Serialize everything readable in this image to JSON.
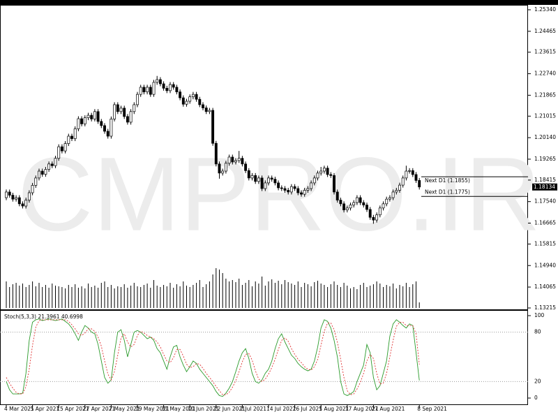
{
  "chart_data": {
    "type": "candlestick",
    "watermark": "CMPRO.IR",
    "up_color": "#ffffff",
    "down_color": "#000000",
    "volume_color": "#000000",
    "ylim": [
      1.13215,
      1.2534
    ],
    "yticks": [
      {
        "value": 1.2534,
        "label": "1.25340"
      },
      1.24465,
      1.23615,
      {
        "value": 1.2274,
        "label": "1.22740"
      },
      1.21865,
      1.21015,
      {
        "value": 1.2014,
        "label": "1.20140"
      },
      1.19265,
      1.18415,
      {
        "value": 1.1754,
        "label": "1.17540"
      },
      1.16665,
      1.15815,
      {
        "value": 1.1494,
        "label": "1.14940"
      },
      1.14065,
      1.13215
    ],
    "categories": [
      "4 Mar 2021",
      null,
      null,
      null,
      null,
      null,
      null,
      null,
      "5 Apr 2021",
      null,
      null,
      null,
      null,
      null,
      null,
      null,
      "15 Apr 2021",
      null,
      null,
      null,
      null,
      null,
      null,
      null,
      "27 Apr 2021",
      null,
      null,
      null,
      null,
      null,
      null,
      null,
      "7 May 2021",
      null,
      null,
      null,
      null,
      null,
      null,
      null,
      "19 May 2021",
      null,
      null,
      null,
      null,
      null,
      null,
      null,
      "31 May 2021",
      null,
      null,
      null,
      null,
      null,
      null,
      null,
      "10 Jun 2021",
      null,
      null,
      null,
      null,
      null,
      null,
      null,
      "22 Jun 2021",
      null,
      null,
      null,
      null,
      null,
      null,
      null,
      "2 Jul 2021",
      null,
      null,
      null,
      null,
      null,
      null,
      null,
      "14 Jul 2021",
      null,
      null,
      null,
      null,
      null,
      null,
      null,
      "26 Jul 2021",
      null,
      null,
      null,
      null,
      null,
      null,
      null,
      "5 Aug 2021",
      null,
      null,
      null,
      null,
      null,
      null,
      null,
      "17 Aug 2021",
      null,
      null,
      null,
      null,
      null,
      null,
      null,
      "27 Aug 2021",
      null,
      null,
      null,
      null,
      null,
      null,
      null,
      null,
      null,
      null,
      null,
      null,
      null,
      "8 Sep 2021"
    ],
    "open": [
      1.177,
      1.1793,
      1.178,
      1.1764,
      1.177,
      1.1745,
      1.1736,
      1.176,
      1.179,
      1.182,
      1.185,
      1.1878,
      1.1865,
      1.1885,
      1.1907,
      1.19,
      1.193,
      1.1977,
      1.196,
      1.199,
      1.202,
      1.201,
      1.205,
      1.2091,
      1.207,
      1.2095,
      1.2105,
      1.209,
      1.212,
      1.208,
      1.2063,
      1.204,
      1.202,
      1.209,
      1.2148,
      1.212,
      1.2134,
      1.21,
      1.2077,
      1.212,
      1.2148,
      1.219,
      1.2219,
      1.22,
      1.2219,
      1.219,
      1.2239,
      1.225,
      1.2233,
      1.2215,
      1.2205,
      1.223,
      1.2219,
      1.22,
      1.2176,
      1.215,
      1.2162,
      1.218,
      1.219,
      1.217,
      1.2148,
      1.2135,
      1.212,
      1.2125,
      1.1991,
      1.1907,
      1.187,
      1.1878,
      1.191,
      1.1935,
      1.1915,
      1.1921,
      1.193,
      1.1907,
      1.188,
      1.185,
      1.186,
      1.1836,
      1.185,
      1.1807,
      1.183,
      1.185,
      1.1845,
      1.183,
      1.181,
      1.1807,
      1.18,
      1.1793,
      1.1815,
      1.1807,
      1.179,
      1.1784,
      1.18,
      1.1807,
      1.183,
      1.185,
      1.187,
      1.1878,
      1.189,
      1.1864,
      1.186,
      1.1793,
      1.176,
      1.1745,
      1.172,
      1.1728,
      1.174,
      1.175,
      1.177,
      1.175,
      1.174,
      1.1722,
      1.169,
      1.1679,
      1.17,
      1.1728,
      1.1745,
      1.1764,
      1.177,
      1.1793,
      1.18,
      1.1821,
      1.185,
      1.1878,
      1.188,
      1.1864,
      1.184
    ],
    "high": [
      1.1803,
      1.1803,
      1.179,
      1.178,
      1.178,
      1.1755,
      1.177,
      1.18,
      1.183,
      1.186,
      1.1888,
      1.1888,
      1.1895,
      1.1917,
      1.1917,
      1.194,
      1.1987,
      1.1987,
      1.2,
      1.203,
      1.203,
      1.206,
      1.2101,
      1.2101,
      1.2105,
      1.2115,
      1.2115,
      1.213,
      1.213,
      1.209,
      1.2073,
      1.205,
      1.21,
      1.2158,
      1.2158,
      1.2144,
      1.2144,
      1.211,
      1.213,
      1.2158,
      1.22,
      1.2229,
      1.2229,
      1.2229,
      1.2229,
      1.2249,
      1.2265,
      1.226,
      1.2243,
      1.2225,
      1.224,
      1.224,
      1.2229,
      1.221,
      1.2186,
      1.2172,
      1.219,
      1.22,
      1.22,
      1.218,
      1.2158,
      1.2145,
      1.2135,
      1.2135,
      1.2001,
      1.1917,
      1.1888,
      1.192,
      1.1945,
      1.1945,
      1.1931,
      1.196,
      1.194,
      1.1917,
      1.189,
      1.187,
      1.187,
      1.186,
      1.186,
      1.184,
      1.186,
      1.186,
      1.1855,
      1.184,
      1.182,
      1.1817,
      1.181,
      1.1825,
      1.1825,
      1.1817,
      1.18,
      1.181,
      1.1817,
      1.184,
      1.186,
      1.188,
      1.1895,
      1.19,
      1.19,
      1.1874,
      1.187,
      1.1803,
      1.177,
      1.1755,
      1.1738,
      1.175,
      1.176,
      1.178,
      1.178,
      1.176,
      1.175,
      1.1732,
      1.17,
      1.171,
      1.1738,
      1.1755,
      1.1774,
      1.178,
      1.1803,
      1.181,
      1.1831,
      1.186,
      1.19,
      1.189,
      1.189,
      1.1874,
      1.185
    ],
    "low": [
      1.176,
      1.177,
      1.1754,
      1.1754,
      1.1735,
      1.1726,
      1.1726,
      1.175,
      1.178,
      1.181,
      1.184,
      1.1855,
      1.1855,
      1.1875,
      1.189,
      1.189,
      1.192,
      1.195,
      1.195,
      1.198,
      1.2,
      1.2,
      1.204,
      1.206,
      1.206,
      1.2085,
      1.208,
      1.208,
      1.207,
      1.2053,
      1.203,
      1.201,
      1.201,
      1.208,
      1.211,
      1.211,
      1.209,
      1.2067,
      1.2067,
      1.211,
      1.2138,
      1.218,
      1.219,
      1.219,
      1.218,
      1.218,
      1.2229,
      1.2223,
      1.2205,
      1.2195,
      1.2195,
      1.2209,
      1.219,
      1.2166,
      1.214,
      1.214,
      1.2152,
      1.217,
      1.216,
      1.2138,
      1.2125,
      1.211,
      1.211,
      1.1981,
      1.1897,
      1.1847,
      1.186,
      1.1868,
      1.19,
      1.1905,
      1.1905,
      1.1911,
      1.1897,
      1.187,
      1.184,
      1.184,
      1.1826,
      1.1826,
      1.1797,
      1.1797,
      1.182,
      1.1835,
      1.182,
      1.18,
      1.1797,
      1.179,
      1.1783,
      1.1783,
      1.1797,
      1.178,
      1.1774,
      1.1774,
      1.179,
      1.1797,
      1.182,
      1.184,
      1.186,
      1.1868,
      1.1854,
      1.185,
      1.1783,
      1.175,
      1.1735,
      1.171,
      1.171,
      1.1718,
      1.173,
      1.174,
      1.174,
      1.173,
      1.1712,
      1.168,
      1.1664,
      1.1669,
      1.169,
      1.1718,
      1.1735,
      1.1754,
      1.176,
      1.1783,
      1.179,
      1.1811,
      1.184,
      1.1868,
      1.1854,
      1.183,
      1.1803
    ],
    "close": [
      1.1793,
      1.178,
      1.1764,
      1.177,
      1.1745,
      1.1736,
      1.176,
      1.179,
      1.182,
      1.185,
      1.1878,
      1.1865,
      1.1885,
      1.1907,
      1.19,
      1.193,
      1.1977,
      1.196,
      1.199,
      1.202,
      1.201,
      1.205,
      1.2091,
      1.207,
      1.2095,
      1.2105,
      1.209,
      1.212,
      1.208,
      1.2063,
      1.204,
      1.202,
      1.209,
      1.2148,
      1.212,
      1.2134,
      1.21,
      1.2077,
      1.212,
      1.2148,
      1.219,
      1.2219,
      1.22,
      1.2219,
      1.219,
      1.2239,
      1.225,
      1.2233,
      1.2215,
      1.2205,
      1.223,
      1.2219,
      1.22,
      1.2176,
      1.215,
      1.2162,
      1.218,
      1.219,
      1.217,
      1.2148,
      1.2135,
      1.212,
      1.2125,
      1.1991,
      1.1907,
      1.187,
      1.1878,
      1.191,
      1.1935,
      1.1915,
      1.1921,
      1.193,
      1.1907,
      1.188,
      1.185,
      1.186,
      1.1836,
      1.185,
      1.1807,
      1.183,
      1.185,
      1.1845,
      1.183,
      1.181,
      1.1807,
      1.18,
      1.1793,
      1.1815,
      1.1807,
      1.179,
      1.1784,
      1.18,
      1.1807,
      1.183,
      1.185,
      1.187,
      1.1878,
      1.189,
      1.1864,
      1.186,
      1.1793,
      1.176,
      1.1745,
      1.172,
      1.1728,
      1.174,
      1.175,
      1.177,
      1.175,
      1.174,
      1.1722,
      1.169,
      1.1679,
      1.17,
      1.1728,
      1.1745,
      1.1764,
      1.177,
      1.1793,
      1.18,
      1.1821,
      1.185,
      1.1878,
      1.188,
      1.1864,
      1.184,
      1.18134
    ],
    "volume": [
      38,
      30,
      34,
      36,
      32,
      35,
      30,
      33,
      38,
      31,
      36,
      30,
      33,
      29,
      35,
      32,
      31,
      30,
      28,
      33,
      30,
      34,
      29,
      31,
      28,
      35,
      30,
      32,
      29,
      36,
      38,
      30,
      33,
      28,
      31,
      30,
      34,
      29,
      32,
      36,
      31,
      30,
      33,
      35,
      29,
      40,
      32,
      30,
      33,
      31,
      36,
      29,
      34,
      31,
      38,
      32,
      30,
      33,
      36,
      40,
      30,
      34,
      38,
      48,
      57,
      55,
      50,
      42,
      38,
      40,
      37,
      42,
      33,
      36,
      40,
      31,
      38,
      35,
      45,
      32,
      38,
      41,
      36,
      39,
      34,
      40,
      37,
      35,
      33,
      38,
      30,
      36,
      34,
      31,
      37,
      39,
      35,
      33,
      30,
      34,
      38,
      33,
      30,
      36,
      32,
      28,
      30,
      27,
      33,
      36,
      30,
      32,
      34,
      38,
      35,
      30,
      33,
      31,
      35,
      28,
      33,
      31,
      36,
      30,
      34,
      38,
      8
    ],
    "levels": [
      {
        "label": "Next D1 (1.1855)",
        "value": 1.1855
      },
      {
        "label": "Next D1 (1.1775)",
        "value": 1.1775
      }
    ],
    "indicator": {
      "type": "line",
      "title": "Stoch(5,3,3)",
      "ylim": [
        0,
        100
      ],
      "yticks": [
        0,
        20,
        80,
        100
      ],
      "series": [
        {
          "color": "#2a9a2a",
          "dash": false,
          "values": [
            20,
            10,
            5,
            5,
            5,
            6,
            30,
            70,
            92,
            95,
            96,
            94,
            95,
            96,
            95,
            94,
            95,
            96,
            93,
            90,
            85,
            78,
            70,
            80,
            88,
            85,
            80,
            78,
            65,
            45,
            25,
            18,
            22,
            55,
            80,
            83,
            70,
            50,
            65,
            80,
            82,
            80,
            76,
            72,
            74,
            70,
            60,
            55,
            45,
            35,
            50,
            62,
            64,
            50,
            40,
            32,
            38,
            45,
            42,
            35,
            30,
            25,
            20,
            15,
            8,
            3,
            2,
            6,
            12,
            20,
            32,
            45,
            55,
            60,
            48,
            30,
            20,
            18,
            22,
            30,
            35,
            45,
            60,
            72,
            78,
            68,
            60,
            52,
            48,
            42,
            38,
            35,
            33,
            35,
            45,
            62,
            85,
            95,
            93,
            85,
            70,
            50,
            20,
            5,
            3,
            5,
            8,
            20,
            30,
            40,
            65,
            55,
            25,
            10,
            15,
            30,
            45,
            75,
            90,
            95,
            92,
            88,
            85,
            90,
            88,
            55,
            21.3961
          ]
        },
        {
          "color": "#e03030",
          "dash": true,
          "values": [
            25,
            18,
            12,
            7,
            5,
            5,
            14,
            35,
            64,
            86,
            94,
            95,
            95,
            95,
            95,
            95,
            95,
            95,
            95,
            93,
            89,
            84,
            78,
            76,
            79,
            84,
            84,
            81,
            74,
            63,
            45,
            29,
            22,
            32,
            52,
            73,
            78,
            68,
            62,
            65,
            76,
            81,
            79,
            76,
            74,
            72,
            68,
            62,
            53,
            45,
            43,
            49,
            59,
            59,
            51,
            41,
            37,
            38,
            42,
            41,
            36,
            30,
            25,
            20,
            14,
            9,
            4,
            4,
            7,
            13,
            21,
            32,
            44,
            53,
            54,
            46,
            33,
            23,
            20,
            23,
            29,
            37,
            47,
            59,
            70,
            73,
            69,
            60,
            53,
            47,
            43,
            38,
            35,
            34,
            38,
            47,
            64,
            81,
            91,
            91,
            83,
            68,
            47,
            25,
            9,
            4,
            5,
            11,
            19,
            30,
            45,
            53,
            48,
            30,
            17,
            18,
            30,
            50,
            70,
            87,
            92,
            92,
            88,
            88,
            88,
            78,
            40.6998
          ]
        }
      ]
    }
  }
}
